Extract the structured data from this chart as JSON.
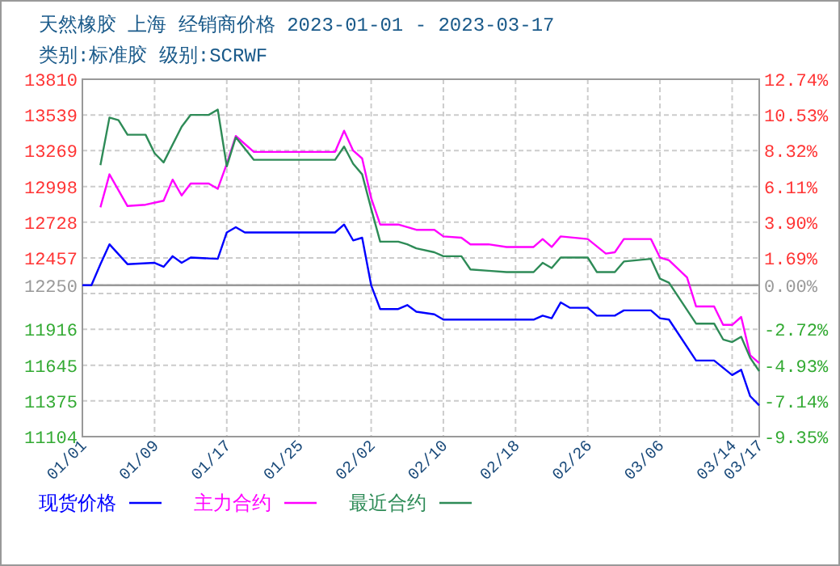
{
  "chart_data": {
    "type": "line",
    "title": "天然橡胶 上海 经销商价格 2023-01-01 - 2023-03-17",
    "subtitle": "类别:标准胶 级别:SCRWF",
    "xlim": [
      "2023-01-01",
      "2023-03-17"
    ],
    "xticks": [
      {
        "value": "2023-01-01",
        "label": "01/01"
      },
      {
        "value": "2023-01-09",
        "label": "01/09"
      },
      {
        "value": "2023-01-17",
        "label": "01/17"
      },
      {
        "value": "2023-01-25",
        "label": "01/25"
      },
      {
        "value": "2023-02-02",
        "label": "02/02"
      },
      {
        "value": "2023-02-10",
        "label": "02/10"
      },
      {
        "value": "2023-02-18",
        "label": "02/18"
      },
      {
        "value": "2023-02-26",
        "label": "02/26"
      },
      {
        "value": "2023-03-06",
        "label": "03/06"
      },
      {
        "value": "2023-03-14",
        "label": "03/14"
      },
      {
        "value": "2023-03-17",
        "label": "03/17"
      }
    ],
    "ylim": [
      11104,
      13810
    ],
    "yticks": [
      13810,
      13539,
      13269,
      12998,
      12728,
      12457,
      12250,
      {
        "value": 12187,
        "label": null
      },
      11916,
      11645,
      11375,
      11104
    ],
    "y2lim": [
      -9.35,
      12.74
    ],
    "y2ticks": [
      {
        "value": 12.74,
        "label": "12.74%"
      },
      {
        "value": 10.53,
        "label": "10.53%"
      },
      {
        "value": 8.32,
        "label": "8.32%"
      },
      {
        "value": 6.11,
        "label": "6.11%"
      },
      {
        "value": 3.9,
        "label": "3.90%"
      },
      {
        "value": 1.69,
        "label": "1.69%"
      },
      {
        "value": 0,
        "label": "0.00%"
      },
      {
        "value": -2.72,
        "label": "-2.72%"
      },
      {
        "value": -4.93,
        "label": "-4.93%"
      },
      {
        "value": -7.14,
        "label": "-7.14%"
      },
      {
        "value": -9.35,
        "label": "-9.35%"
      }
    ],
    "ref_lines": [
      {
        "axis": "y",
        "value": 12250,
        "color": "#999999"
      }
    ],
    "grid": true,
    "legend": "bottom",
    "series": [
      {
        "name": "现货价格",
        "color": "#0000ff",
        "x": [
          "2023-01-01",
          "2023-01-02",
          "2023-01-03",
          "2023-01-04",
          "2023-01-06",
          "2023-01-09",
          "2023-01-10",
          "2023-01-11",
          "2023-01-12",
          "2023-01-13",
          "2023-01-16",
          "2023-01-17",
          "2023-01-18",
          "2023-01-19",
          "2023-01-29",
          "2023-01-30",
          "2023-01-31",
          "2023-02-01",
          "2023-02-02",
          "2023-02-03",
          "2023-02-05",
          "2023-02-06",
          "2023-02-07",
          "2023-02-09",
          "2023-02-10",
          "2023-02-20",
          "2023-02-21",
          "2023-02-22",
          "2023-02-23",
          "2023-02-24",
          "2023-02-26",
          "2023-02-27",
          "2023-03-01",
          "2023-03-02",
          "2023-03-05",
          "2023-03-06",
          "2023-03-07",
          "2023-03-10",
          "2023-03-12",
          "2023-03-14",
          "2023-03-15",
          "2023-03-16",
          "2023-03-17"
        ],
        "values": [
          12250,
          12250,
          12410,
          12560,
          12410,
          12420,
          12390,
          12470,
          12420,
          12460,
          12450,
          12650,
          12690,
          12650,
          12650,
          12710,
          12590,
          12610,
          12250,
          12070,
          12070,
          12100,
          12050,
          12030,
          11990,
          11990,
          12020,
          12000,
          12120,
          12080,
          12080,
          12020,
          12020,
          12060,
          12060,
          12000,
          11990,
          11680,
          11680,
          11570,
          11610,
          11410,
          11340
        ]
      },
      {
        "name": "主力合约",
        "color": "#ff00ff",
        "x": [
          "2023-01-03",
          "2023-01-04",
          "2023-01-06",
          "2023-01-08",
          "2023-01-10",
          "2023-01-11",
          "2023-01-12",
          "2023-01-13",
          "2023-01-15",
          "2023-01-16",
          "2023-01-17",
          "2023-01-18",
          "2023-01-20",
          "2023-01-29",
          "2023-01-30",
          "2023-01-31",
          "2023-02-01",
          "2023-02-02",
          "2023-02-03",
          "2023-02-05",
          "2023-02-06",
          "2023-02-07",
          "2023-02-09",
          "2023-02-10",
          "2023-02-12",
          "2023-02-13",
          "2023-02-15",
          "2023-02-17",
          "2023-02-20",
          "2023-02-21",
          "2023-02-22",
          "2023-02-23",
          "2023-02-26",
          "2023-02-28",
          "2023-03-01",
          "2023-03-02",
          "2023-03-05",
          "2023-03-06",
          "2023-03-07",
          "2023-03-09",
          "2023-03-10",
          "2023-03-12",
          "2023-03-13",
          "2023-03-14",
          "2023-03-15",
          "2023-03-16",
          "2023-03-17"
        ],
        "values": [
          12840,
          13090,
          12850,
          12860,
          12890,
          13050,
          12930,
          13020,
          13020,
          12980,
          13170,
          13380,
          13260,
          13260,
          13420,
          13270,
          13210,
          12910,
          12710,
          12710,
          12690,
          12670,
          12670,
          12620,
          12610,
          12560,
          12560,
          12540,
          12540,
          12600,
          12540,
          12620,
          12600,
          12490,
          12500,
          12600,
          12600,
          12460,
          12440,
          12310,
          12090,
          12090,
          11950,
          11950,
          12010,
          11720,
          11660
        ]
      },
      {
        "name": "最近合约",
        "color": "#2e8b57",
        "x": [
          "2023-01-03",
          "2023-01-04",
          "2023-01-05",
          "2023-01-06",
          "2023-01-08",
          "2023-01-09",
          "2023-01-10",
          "2023-01-12",
          "2023-01-13",
          "2023-01-15",
          "2023-01-16",
          "2023-01-17",
          "2023-01-18",
          "2023-01-20",
          "2023-01-29",
          "2023-01-30",
          "2023-01-31",
          "2023-02-01",
          "2023-02-02",
          "2023-02-03",
          "2023-02-05",
          "2023-02-06",
          "2023-02-07",
          "2023-02-09",
          "2023-02-10",
          "2023-02-12",
          "2023-02-13",
          "2023-02-15",
          "2023-02-17",
          "2023-02-20",
          "2023-02-21",
          "2023-02-22",
          "2023-02-23",
          "2023-02-26",
          "2023-02-27",
          "2023-03-01",
          "2023-03-02",
          "2023-03-05",
          "2023-03-06",
          "2023-03-07",
          "2023-03-10",
          "2023-03-12",
          "2023-03-13",
          "2023-03-14",
          "2023-03-15",
          "2023-03-16",
          "2023-03-17"
        ],
        "values": [
          13160,
          13520,
          13500,
          13390,
          13390,
          13250,
          13180,
          13450,
          13540,
          13540,
          13580,
          13150,
          13370,
          13200,
          13200,
          13300,
          13170,
          13090,
          12830,
          12580,
          12580,
          12560,
          12530,
          12500,
          12470,
          12470,
          12370,
          12360,
          12350,
          12350,
          12420,
          12380,
          12460,
          12460,
          12350,
          12350,
          12430,
          12450,
          12300,
          12270,
          11960,
          11960,
          11840,
          11820,
          11860,
          11700,
          11600
        ]
      }
    ]
  }
}
